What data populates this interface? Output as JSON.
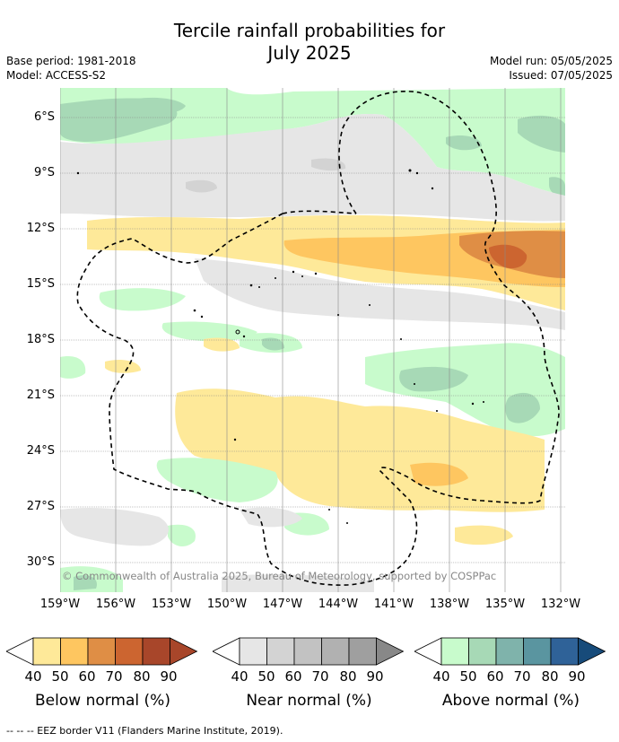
{
  "title_line1": "Tercile rainfall probabilities for",
  "title_line2": "July 2025",
  "meta": {
    "base_period": "Base period: 1981-2018",
    "model": "Model: ACCESS-S2",
    "model_run": "Model run: 05/05/2025",
    "issued": "Issued: 07/05/2025"
  },
  "copyright": "© Commonwealth of Australia 2025, Bureau of Meteorology, supported by COSPPac",
  "lat_labels": [
    "6°S",
    "9°S",
    "12°S",
    "15°S",
    "18°S",
    "21°S",
    "24°S",
    "27°S",
    "30°S"
  ],
  "lon_labels": [
    "159°W",
    "156°W",
    "153°W",
    "150°W",
    "147°W",
    "144°W",
    "141°W",
    "138°W",
    "135°W",
    "132°W"
  ],
  "colorbars": {
    "below": {
      "title": "Below normal (%)",
      "ticks": [
        "40",
        "50",
        "60",
        "70",
        "80",
        "90"
      ],
      "colors": [
        "#fee999",
        "#fec660",
        "#df8e45",
        "#cc6530",
        "#a8462a",
        "#a8462a"
      ]
    },
    "near": {
      "title": "Near normal (%)",
      "ticks": [
        "40",
        "50",
        "60",
        "70",
        "80",
        "90"
      ],
      "colors": [
        "#e6e6e6",
        "#d3d3d3",
        "#c2c2c2",
        "#b1b1b1",
        "#9f9f9f",
        "#888888"
      ]
    },
    "above": {
      "title": "Above normal (%)",
      "ticks": [
        "40",
        "50",
        "60",
        "70",
        "80",
        "90"
      ],
      "colors": [
        "#c8fbcc",
        "#a7d9b6",
        "#7fb3ab",
        "#5a95a0",
        "#2f6298",
        "#174b7a"
      ]
    }
  },
  "footnote": "--  --  -- EEZ border V11 (Flanders Marine Institute, 2019)."
}
